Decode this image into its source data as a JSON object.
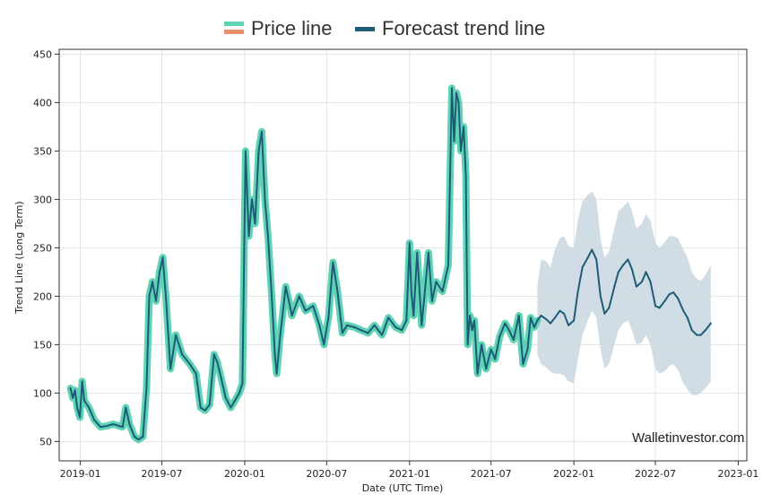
{
  "chart_data": {
    "type": "line",
    "title": "",
    "xlabel": "Date (UTC Time)",
    "ylabel": "Trend Line (Long Term)",
    "xlim": [
      "2018-11-15",
      "2023-01-20"
    ],
    "ylim": [
      30,
      455
    ],
    "x_ticks": [
      "2019-01",
      "2019-07",
      "2020-01",
      "2020-07",
      "2021-01",
      "2021-07",
      "2022-01",
      "2022-07",
      "2023-01"
    ],
    "y_ticks": [
      50,
      100,
      150,
      200,
      250,
      300,
      350,
      400,
      450
    ],
    "grid": true,
    "legend": {
      "placement": "top-center",
      "entries": [
        "Price line",
        "Forecast trend line"
      ]
    },
    "colors": {
      "price_band": "#5fd4b4",
      "price_legend_top": "#5fd4b4",
      "price_legend_bottom": "#e8906c",
      "trend": "#1d5b79",
      "forecast_band": "#c9d7df",
      "grid": "#e3e3e3",
      "axis": "#333333"
    },
    "series": [
      {
        "name": "Price line",
        "x": [
          "2018-12-10",
          "2018-12-15",
          "2018-12-20",
          "2018-12-25",
          "2018-12-31",
          "2019-01-05",
          "2019-01-10",
          "2019-01-20",
          "2019-02-01",
          "2019-02-15",
          "2019-03-01",
          "2019-03-15",
          "2019-03-28",
          "2019-04-05",
          "2019-04-12",
          "2019-04-20",
          "2019-05-01",
          "2019-05-10",
          "2019-05-20",
          "2019-05-28",
          "2019-06-03",
          "2019-06-10",
          "2019-06-18",
          "2019-06-26",
          "2019-07-03",
          "2019-07-10",
          "2019-07-20",
          "2019-08-01",
          "2019-08-15",
          "2019-09-01",
          "2019-09-15",
          "2019-09-25",
          "2019-10-05",
          "2019-10-15",
          "2019-10-25",
          "2019-11-01",
          "2019-11-10",
          "2019-11-20",
          "2019-12-01",
          "2019-12-10",
          "2019-12-20",
          "2019-12-27",
          "2020-01-03",
          "2020-01-10",
          "2020-01-17",
          "2020-01-24",
          "2020-02-01",
          "2020-02-08",
          "2020-02-15",
          "2020-02-22",
          "2020-03-01",
          "2020-03-08",
          "2020-03-12",
          "2020-03-20",
          "2020-04-01",
          "2020-04-15",
          "2020-05-01",
          "2020-05-15",
          "2020-06-01",
          "2020-06-15",
          "2020-06-25",
          "2020-07-05",
          "2020-07-15",
          "2020-07-25",
          "2020-08-05",
          "2020-08-15",
          "2020-09-01",
          "2020-09-15",
          "2020-10-01",
          "2020-10-15",
          "2020-11-01",
          "2020-11-15",
          "2020-12-01",
          "2020-12-15",
          "2020-12-25",
          "2021-01-01",
          "2021-01-05",
          "2021-01-10",
          "2021-01-18",
          "2021-01-28",
          "2021-02-05",
          "2021-02-12",
          "2021-02-20",
          "2021-03-01",
          "2021-03-15",
          "2021-03-28",
          "2021-04-05",
          "2021-04-10",
          "2021-04-15",
          "2021-04-20",
          "2021-04-25",
          "2021-05-01",
          "2021-05-06",
          "2021-05-10",
          "2021-05-15",
          "2021-05-20",
          "2021-05-25",
          "2021-06-01",
          "2021-06-10",
          "2021-06-20",
          "2021-07-01",
          "2021-07-10",
          "2021-07-20",
          "2021-08-01",
          "2021-08-10",
          "2021-08-20",
          "2021-09-01",
          "2021-09-10",
          "2021-09-20",
          "2021-09-27",
          "2021-10-05",
          "2021-10-12"
        ],
        "values": [
          105,
          95,
          103,
          85,
          75,
          112,
          92,
          85,
          72,
          65,
          66,
          68,
          66,
          65,
          85,
          68,
          55,
          52,
          55,
          105,
          200,
          215,
          195,
          225,
          240,
          200,
          125,
          160,
          140,
          130,
          120,
          85,
          82,
          88,
          140,
          132,
          115,
          95,
          85,
          92,
          100,
          110,
          350,
          262,
          300,
          275,
          350,
          370,
          300,
          260,
          200,
          140,
          120,
          160,
          210,
          180,
          200,
          185,
          190,
          170,
          150,
          178,
          235,
          205,
          162,
          170,
          168,
          165,
          162,
          170,
          160,
          178,
          168,
          165,
          175,
          255,
          205,
          180,
          245,
          170,
          210,
          245,
          195,
          215,
          205,
          232,
          415,
          360,
          410,
          400,
          350,
          375,
          325,
          150,
          180,
          165,
          175,
          120,
          150,
          125,
          145,
          135,
          158,
          172,
          165,
          155,
          180,
          130,
          145,
          178,
          168,
          175
        ]
      },
      {
        "name": "Forecast trend line",
        "x": [
          "2021-10-12",
          "2021-10-20",
          "2021-11-01",
          "2021-11-10",
          "2021-11-20",
          "2021-12-01",
          "2021-12-10",
          "2021-12-20",
          "2022-01-01",
          "2022-01-10",
          "2022-01-20",
          "2022-02-01",
          "2022-02-10",
          "2022-02-20",
          "2022-03-01",
          "2022-03-10",
          "2022-03-20",
          "2022-04-01",
          "2022-04-10",
          "2022-04-20",
          "2022-05-01",
          "2022-05-10",
          "2022-05-20",
          "2022-06-01",
          "2022-06-10",
          "2022-06-20",
          "2022-07-01",
          "2022-07-10",
          "2022-07-20",
          "2022-08-01",
          "2022-08-10",
          "2022-08-20",
          "2022-09-01",
          "2022-09-10",
          "2022-09-20",
          "2022-10-01",
          "2022-10-10",
          "2022-10-20",
          "2022-11-01"
        ],
        "values": [
          175,
          180,
          176,
          172,
          178,
          185,
          182,
          170,
          175,
          205,
          230,
          240,
          248,
          238,
          200,
          182,
          188,
          210,
          225,
          232,
          238,
          228,
          210,
          215,
          225,
          215,
          190,
          188,
          194,
          202,
          204,
          198,
          185,
          178,
          165,
          160,
          160,
          165,
          172
        ],
        "band_lower": [
          140,
          130,
          126,
          122,
          120,
          120,
          118,
          112,
          110,
          135,
          160,
          175,
          185,
          178,
          145,
          125,
          130,
          150,
          165,
          172,
          175,
          165,
          150,
          152,
          160,
          150,
          125,
          120,
          122,
          128,
          130,
          124,
          110,
          104,
          98,
          98,
          100,
          105,
          112
        ],
        "band_upper": [
          210,
          238,
          236,
          230,
          248,
          260,
          262,
          252,
          250,
          280,
          298,
          305,
          308,
          300,
          260,
          240,
          246,
          270,
          288,
          292,
          298,
          288,
          270,
          275,
          285,
          278,
          255,
          250,
          255,
          262,
          262,
          260,
          248,
          240,
          225,
          218,
          216,
          222,
          232
        ]
      }
    ]
  },
  "watermark": "Walletinvestor.com"
}
